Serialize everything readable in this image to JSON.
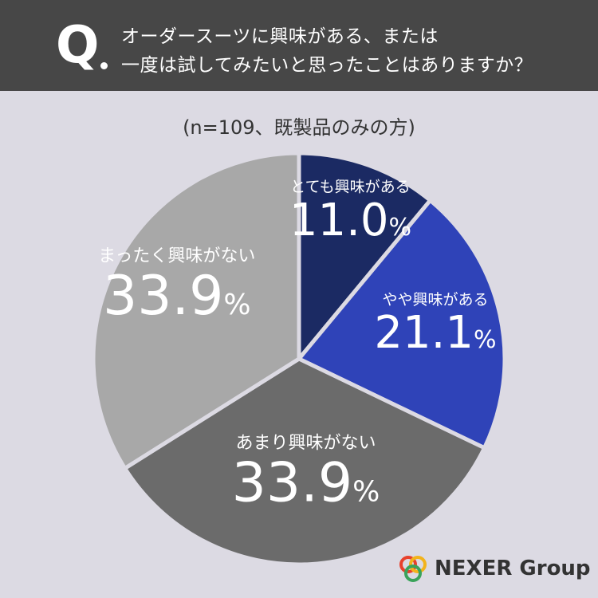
{
  "header": {
    "q_mark": "Q",
    "line1": "オーダースーツに興味がある、または",
    "line2": "一度は試してみたいと思ったことはありますか？"
  },
  "subtitle": "(n=109、既製品のみの方)",
  "chart_data": {
    "type": "pie",
    "title": "オーダースーツに興味がある、または一度は試してみたいと思ったことはありますか？",
    "subtitle": "(n=109、既製品のみの方)",
    "unit": "%",
    "slices": [
      {
        "label": "とても興味がある",
        "value": 11.0,
        "value_text": "11.0",
        "color": "#1b2a63"
      },
      {
        "label": "やや興味がある",
        "value": 21.1,
        "value_text": "21.1",
        "color": "#2f43b8"
      },
      {
        "label": "あまり興味がない",
        "value": 33.9,
        "value_text": "33.9",
        "color": "#6b6b6b"
      },
      {
        "label": "まったく興味がない",
        "value": 33.9,
        "value_text": "33.9",
        "color": "#a8a8a8"
      }
    ]
  },
  "logo": {
    "text": "NEXER Group",
    "ring_colors": [
      "#e8412c",
      "#f2b31b",
      "#3aa35a"
    ]
  }
}
